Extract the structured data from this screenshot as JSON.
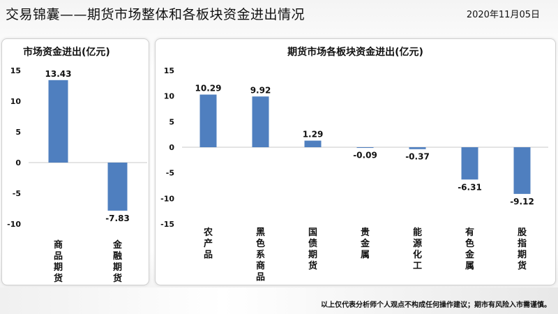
{
  "header": {
    "title": "交易锦囊——期货市场整体和各板块资金进出情况",
    "date": "2020年11月05日"
  },
  "footer": {
    "disclaimer": "以上仅代表分析师个人观点不构成任何操作建议；期市有风险入市需谨慎。"
  },
  "colors": {
    "bar": "#4f7fbf",
    "axis": "#c8c8c8"
  },
  "chart_data": [
    {
      "type": "bar",
      "title": "市场资金进出(亿元)",
      "categories": [
        "商品期货",
        "金融期货"
      ],
      "values": [
        13.43,
        -7.83
      ],
      "value_labels": [
        "13.43",
        "-7.83"
      ],
      "ylim": [
        -10,
        15
      ],
      "yticks": [
        15,
        10,
        5,
        0,
        -5,
        -10
      ],
      "xlabel": "",
      "ylabel": "",
      "grid": false,
      "legend": "none"
    },
    {
      "type": "bar",
      "title": "期货市场各板块资金进出(亿元)",
      "categories": [
        "农产品",
        "黑色系商品",
        "国债期货",
        "贵金属",
        "能源化工",
        "有色金属",
        "股指期货"
      ],
      "values": [
        10.29,
        9.92,
        1.29,
        -0.09,
        -0.37,
        -6.31,
        -9.12
      ],
      "value_labels": [
        "10.29",
        "9.92",
        "1.29",
        "-0.09",
        "-0.37",
        "-6.31",
        "-9.12"
      ],
      "ylim": [
        -15,
        15
      ],
      "yticks": [
        15,
        10,
        5,
        0,
        -5,
        -10,
        -15
      ],
      "xlabel": "",
      "ylabel": "",
      "grid": false,
      "legend": "none"
    }
  ]
}
